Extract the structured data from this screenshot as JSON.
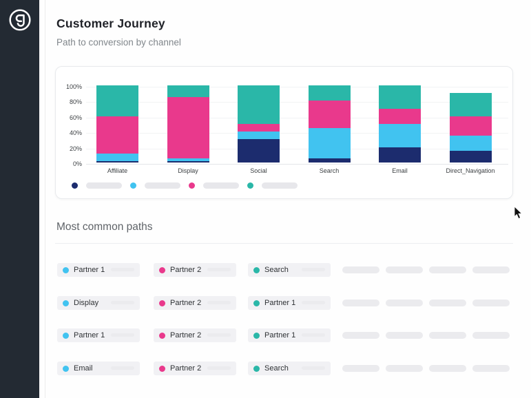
{
  "header": {
    "title": "Customer Journey",
    "subtitle": "Path to conversion by channel"
  },
  "chart_data": {
    "type": "bar",
    "stacked": true,
    "title": "Path to conversion by channel",
    "categories": [
      "Affiliate",
      "Display",
      "Social",
      "Search",
      "Email",
      "Direct_Navigation"
    ],
    "series": [
      {
        "name": "series-navy",
        "color": "#1c2c6e",
        "values": [
          2,
          2,
          30,
          5,
          20,
          15
        ]
      },
      {
        "name": "series-lightblue",
        "color": "#41c3f0",
        "values": [
          10,
          3,
          10,
          40,
          30,
          20
        ]
      },
      {
        "name": "series-pink",
        "color": "#e9398c",
        "values": [
          48,
          80,
          10,
          35,
          20,
          25
        ]
      },
      {
        "name": "series-teal",
        "color": "#2ab7a8",
        "values": [
          40,
          15,
          50,
          20,
          30,
          30
        ]
      }
    ],
    "y_ticks": [
      "100%",
      "80%",
      "60%",
      "40%",
      "20%",
      "0%"
    ],
    "ylim": [
      0,
      100
    ],
    "grid": true,
    "legend_position": "bottom",
    "legend": [
      {
        "color": "#1c2c6e",
        "label_placeholder": true
      },
      {
        "color": "#41c3f0",
        "label_placeholder": true
      },
      {
        "color": "#e9398c",
        "label_placeholder": true
      },
      {
        "color": "#2ab7a8",
        "label_placeholder": true
      }
    ]
  },
  "paths_section": {
    "title": "Most common paths",
    "rows": [
      {
        "steps": [
          {
            "label": "Partner 1",
            "color": "#41c3f0"
          },
          {
            "label": "Partner 2",
            "color": "#e9398c"
          },
          {
            "label": "Search",
            "color": "#2ab7a8"
          }
        ],
        "placeholders": 4
      },
      {
        "steps": [
          {
            "label": "Display",
            "color": "#41c3f0"
          },
          {
            "label": "Partner 2",
            "color": "#e9398c"
          },
          {
            "label": "Partner 1",
            "color": "#2ab7a8"
          }
        ],
        "placeholders": 4
      },
      {
        "steps": [
          {
            "label": "Partner 1",
            "color": "#41c3f0"
          },
          {
            "label": "Partner 2",
            "color": "#e9398c"
          },
          {
            "label": "Partner 1",
            "color": "#2ab7a8"
          }
        ],
        "placeholders": 4
      },
      {
        "steps": [
          {
            "label": "Email",
            "color": "#41c3f0"
          },
          {
            "label": "Partner 2",
            "color": "#e9398c"
          },
          {
            "label": "Search",
            "color": "#2ab7a8"
          }
        ],
        "placeholders": 4
      }
    ]
  },
  "colors": {
    "sidebar_bg": "#232a33",
    "navy": "#1c2c6e",
    "lightblue": "#41c3f0",
    "pink": "#e9398c",
    "teal": "#2ab7a8",
    "chip_bg": "#f1f1f4",
    "skeleton": "#ebebee"
  }
}
